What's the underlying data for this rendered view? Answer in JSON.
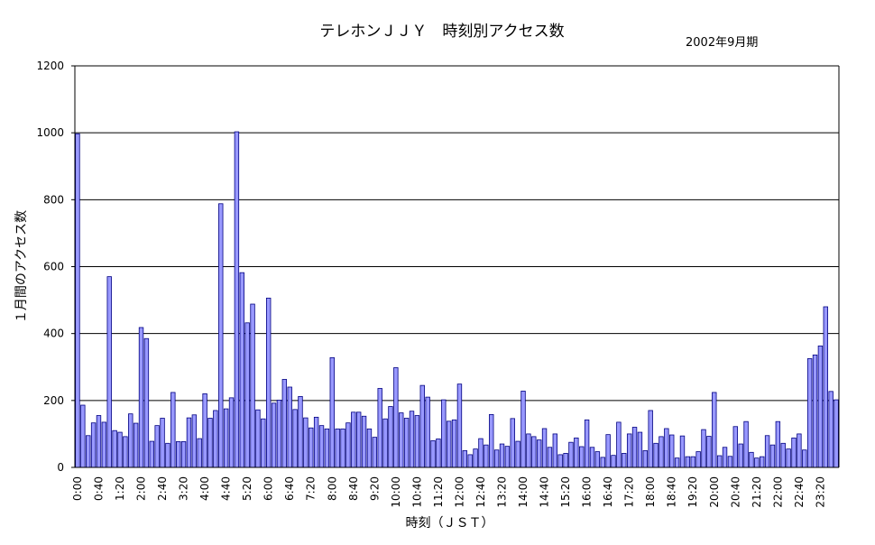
{
  "chart_data": {
    "type": "bar",
    "title": "テレホンＪＪＹ　時刻別アクセス数",
    "subtitle": "2002年9月期",
    "xlabel": "時刻（ＪＳＴ）",
    "ylabel": "１月間のアクセス数",
    "ylim": [
      0,
      1200
    ],
    "yticks": [
      "0",
      "200",
      "400",
      "600",
      "800",
      "1000",
      "1200"
    ],
    "grid": true,
    "bar_color": "#9999ff",
    "bar_edge_color": "#000080",
    "x_tick_labels": [
      "0:00",
      "0:40",
      "1:20",
      "2:00",
      "2:40",
      "3:20",
      "4:00",
      "4:40",
      "5:20",
      "6:00",
      "6:40",
      "7:20",
      "8:00",
      "8:40",
      "9:20",
      "10:00",
      "10:40",
      "11:20",
      "12:00",
      "12:40",
      "13:20",
      "14:00",
      "14:40",
      "15:20",
      "16:00",
      "16:40",
      "17:20",
      "18:00",
      "18:40",
      "19:20",
      "20:00",
      "20:40",
      "21:20",
      "22:00",
      "22:40",
      "23:20"
    ],
    "values": [
      997,
      186,
      95,
      133,
      155,
      135,
      570,
      110,
      105,
      92,
      160,
      132,
      418,
      385,
      78,
      125,
      147,
      72,
      224,
      77,
      77,
      148,
      157,
      86,
      220,
      147,
      170,
      788,
      175,
      208,
      1003,
      582,
      432,
      488,
      172,
      145,
      506,
      192,
      201,
      263,
      240,
      173,
      212,
      148,
      118,
      150,
      125,
      115,
      328,
      115,
      115,
      133,
      165,
      165,
      153,
      115,
      90,
      236,
      145,
      182,
      298,
      163,
      147,
      168,
      155,
      245,
      210,
      80,
      85,
      202,
      138,
      142,
      249,
      50,
      38,
      55,
      86,
      67,
      158,
      52,
      70,
      63,
      146,
      78,
      228,
      100,
      92,
      82,
      116,
      60,
      100,
      38,
      42,
      75,
      88,
      62,
      142,
      60,
      47,
      30,
      98,
      36,
      135,
      42,
      100,
      120,
      105,
      50,
      170,
      72,
      92,
      116,
      97,
      28,
      94,
      32,
      32,
      47,
      113,
      93,
      224,
      35,
      60,
      33,
      122,
      70,
      137,
      45,
      28,
      32,
      95,
      67,
      137,
      72,
      55,
      88,
      100,
      52,
      325,
      336,
      363,
      480,
      227,
      202
    ]
  }
}
